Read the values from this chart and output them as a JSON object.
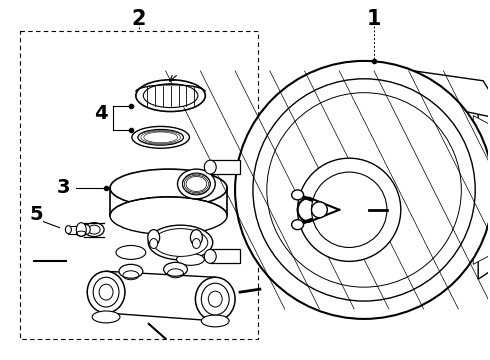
{
  "background_color": "#ffffff",
  "line_color": "#000000",
  "font_size_labels": 13,
  "fig_width": 4.9,
  "fig_height": 3.6,
  "dpi": 100
}
